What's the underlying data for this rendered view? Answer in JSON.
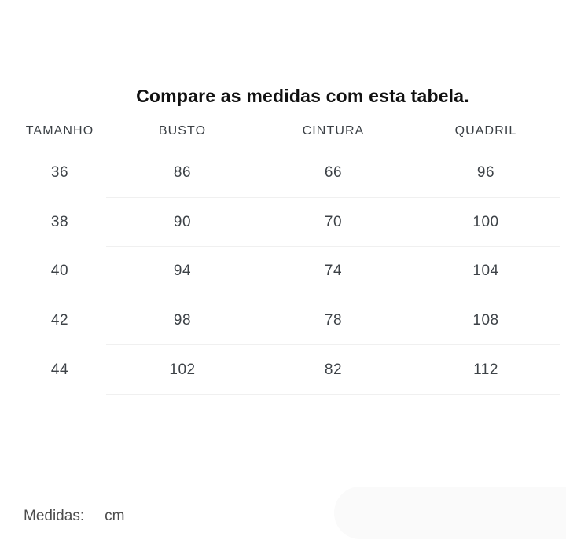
{
  "title": "Compare as medidas com esta tabela.",
  "table": {
    "columns": [
      "TAMANHO",
      "BUSTO",
      "CINTURA",
      "QUADRIL"
    ],
    "rows": [
      [
        "36",
        "86",
        "66",
        "96"
      ],
      [
        "38",
        "90",
        "70",
        "100"
      ],
      [
        "40",
        "94",
        "74",
        "104"
      ],
      [
        "42",
        "98",
        "78",
        "108"
      ],
      [
        "44",
        "102",
        "82",
        "112"
      ]
    ]
  },
  "footer": {
    "label": "Medidas:",
    "unit": "cm"
  },
  "colors": {
    "title_text": "#111111",
    "table_text": "#3d4247",
    "separator": "#f0f0f0",
    "footer_text": "#4c4c4c",
    "cutoff_shape": "#fafafa"
  }
}
